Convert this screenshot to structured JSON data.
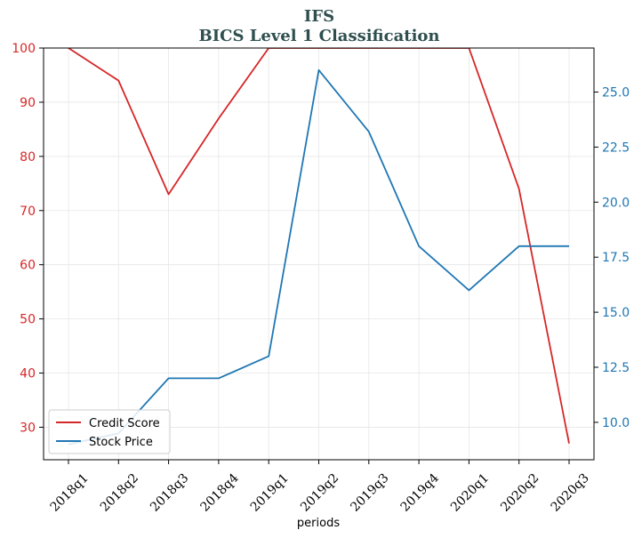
{
  "chart_data": {
    "type": "line",
    "title": "IFS",
    "subtitle": "BICS Level 1 Classification",
    "xlabel": "periods",
    "categories": [
      "2018q1",
      "2018q2",
      "2018q3",
      "2018q4",
      "2019q1",
      "2019q2",
      "2019q3",
      "2019q4",
      "2020q1",
      "2020q2",
      "2020q3"
    ],
    "y_left": {
      "ylim": [
        24,
        100
      ],
      "ticks": [
        30,
        40,
        50,
        60,
        70,
        80,
        90,
        100
      ],
      "color": "#d62728"
    },
    "y_right": {
      "ylim": [
        8.3,
        27.0
      ],
      "ticks": [
        "10.0",
        "12.5",
        "15.0",
        "17.5",
        "20.0",
        "22.5",
        "25.0"
      ],
      "color": "#1f77b4"
    },
    "series": [
      {
        "name": "Credit Score",
        "axis": "left",
        "color": "#d62728",
        "values": [
          100,
          94,
          73,
          87,
          100,
          100,
          100,
          100,
          100,
          74,
          27
        ]
      },
      {
        "name": "Stock Price",
        "axis": "right",
        "color": "#1f77b4",
        "values": [
          9.0,
          9.5,
          12.0,
          12.0,
          13.0,
          26.0,
          23.2,
          18.0,
          16.0,
          18.0,
          18.0
        ]
      }
    ],
    "grid": true,
    "legend_position": "lower-left"
  }
}
